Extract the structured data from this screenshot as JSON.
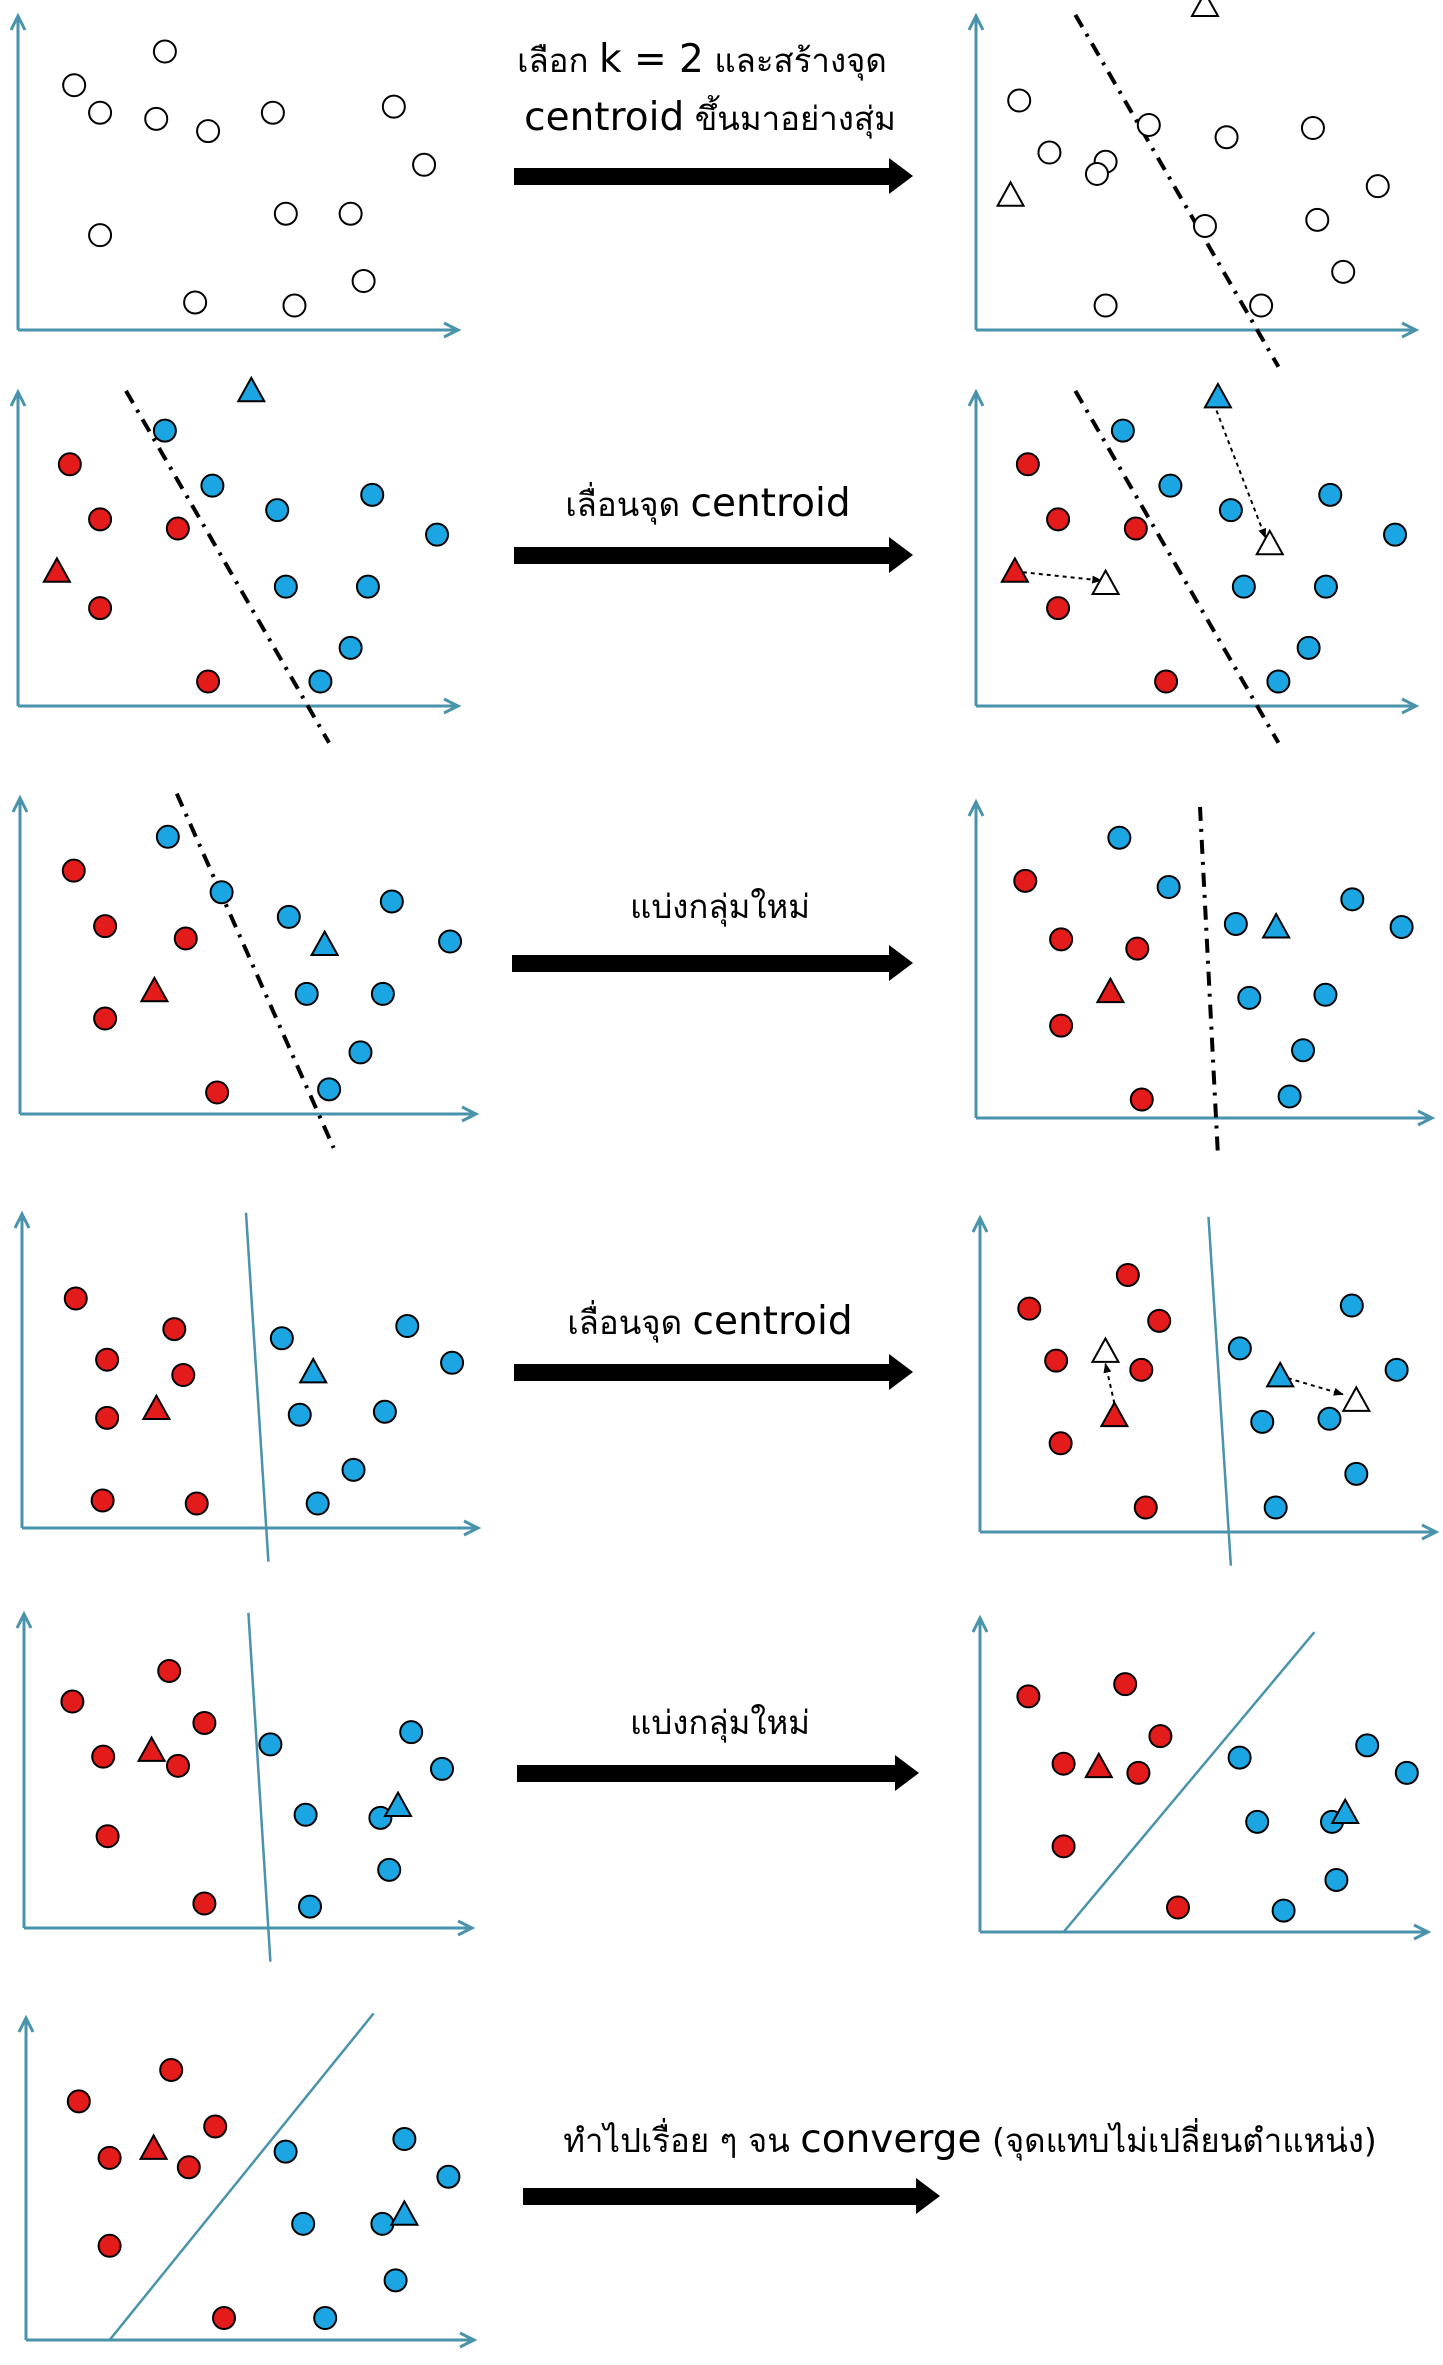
{
  "colors": {
    "axis": "#4a93ad",
    "red": "#e31b1b",
    "blue": "#1ba6e3",
    "stroke": "#000000",
    "arrow": "#000000"
  },
  "labels": {
    "step1_line1_a": "เลือก ",
    "step1_line1_b": "k = 2",
    "step1_line1_c": " และสร้างจุด",
    "step1_line2_a": "centroid",
    "step1_line2_b": " ขึ้นมาอย่างสุ่ม",
    "step2_a": "เลื่อนจุด ",
    "step2_b": "centroid",
    "step3": "แบ่งกลุ่มใหม่",
    "step4_a": "เลื่อนจุด ",
    "step4_b": "centroid",
    "step5": "แบ่งกลุ่มใหม่",
    "step6_a": "ทำไปเรื่อย ๆ จน ",
    "step6_b": "converge",
    "step6_c": " (จุดแทบไม่เปลี่ยนตำแหน่ง)"
  },
  "panels": [
    {
      "name": "panel-1-initial",
      "points": [
        [
          "w",
          0.13,
          0.8
        ],
        [
          "w",
          0.19,
          0.71
        ],
        [
          "w",
          0.34,
          0.91
        ],
        [
          "w",
          0.32,
          0.69
        ],
        [
          "w",
          0.44,
          0.65
        ],
        [
          "w",
          0.59,
          0.71
        ],
        [
          "w",
          0.87,
          0.73
        ],
        [
          "w",
          0.94,
          0.54
        ],
        [
          "w",
          0.19,
          0.31
        ],
        [
          "w",
          0.62,
          0.38
        ],
        [
          "w",
          0.77,
          0.38
        ],
        [
          "w",
          0.8,
          0.16
        ],
        [
          "w",
          0.41,
          0.09
        ],
        [
          "w",
          0.64,
          0.08
        ]
      ]
    },
    {
      "name": "panel-2-random-centroids",
      "points": [
        [
          "w",
          0.1,
          0.75
        ],
        [
          "w",
          0.17,
          0.58
        ],
        [
          "w",
          0.3,
          0.55
        ],
        [
          "w",
          0.4,
          0.67
        ],
        [
          "w",
          0.3,
          0.08
        ],
        [
          "w",
          0.28,
          0.51
        ],
        [
          "w",
          0.58,
          0.63
        ],
        [
          "w",
          0.53,
          0.34
        ],
        [
          "w",
          0.78,
          0.66
        ],
        [
          "w",
          0.93,
          0.47
        ],
        [
          "w",
          0.79,
          0.36
        ],
        [
          "w",
          0.85,
          0.19
        ],
        [
          "w",
          0.66,
          0.08
        ]
      ],
      "triangles": [
        [
          "w",
          0.08,
          0.44
        ],
        [
          "w",
          0.53,
          1.06
        ]
      ],
      "lines": [
        {
          "style": "dashdot",
          "from": [
            0.23,
            1.03
          ],
          "to": [
            0.7,
            -0.12
          ]
        }
      ]
    },
    {
      "name": "panel-3-assign",
      "points": [
        [
          "r",
          0.12,
          0.79
        ],
        [
          "r",
          0.19,
          0.61
        ],
        [
          "r",
          0.37,
          0.58
        ],
        [
          "r",
          0.19,
          0.32
        ],
        [
          "r",
          0.44,
          0.08
        ],
        [
          "b",
          0.34,
          0.9
        ],
        [
          "b",
          0.45,
          0.72
        ],
        [
          "b",
          0.6,
          0.64
        ],
        [
          "b",
          0.82,
          0.69
        ],
        [
          "b",
          0.97,
          0.56
        ],
        [
          "b",
          0.62,
          0.39
        ],
        [
          "b",
          0.81,
          0.39
        ],
        [
          "b",
          0.77,
          0.19
        ],
        [
          "b",
          0.7,
          0.08
        ]
      ],
      "triangles": [
        [
          "r",
          0.09,
          0.44
        ],
        [
          "b",
          0.54,
          1.03
        ]
      ],
      "lines": [
        {
          "style": "dashdot",
          "from": [
            0.25,
            1.03
          ],
          "to": [
            0.72,
            -0.12
          ]
        }
      ]
    },
    {
      "name": "panel-4-move-centroids",
      "points": [
        [
          "r",
          0.12,
          0.79
        ],
        [
          "r",
          0.19,
          0.61
        ],
        [
          "r",
          0.37,
          0.58
        ],
        [
          "r",
          0.19,
          0.32
        ],
        [
          "r",
          0.44,
          0.08
        ],
        [
          "b",
          0.34,
          0.9
        ],
        [
          "b",
          0.45,
          0.72
        ],
        [
          "b",
          0.59,
          0.64
        ],
        [
          "b",
          0.82,
          0.69
        ],
        [
          "b",
          0.97,
          0.56
        ],
        [
          "b",
          0.62,
          0.39
        ],
        [
          "b",
          0.81,
          0.39
        ],
        [
          "b",
          0.77,
          0.19
        ],
        [
          "b",
          0.7,
          0.08
        ]
      ],
      "triangles": [
        [
          "r",
          0.09,
          0.44
        ],
        [
          "b",
          0.56,
          1.01
        ],
        [
          "w",
          0.3,
          0.4
        ],
        [
          "w",
          0.68,
          0.53
        ]
      ],
      "arrows": [
        {
          "from": [
            0.09,
            0.44
          ],
          "to": [
            0.29,
            0.41
          ]
        },
        {
          "from": [
            0.55,
            0.99
          ],
          "to": [
            0.67,
            0.55
          ]
        }
      ],
      "lines": [
        {
          "style": "dashdot",
          "from": [
            0.23,
            1.03
          ],
          "to": [
            0.7,
            -0.12
          ]
        }
      ]
    },
    {
      "name": "panel-5-before-reassign",
      "points": [
        [
          "r",
          0.12,
          0.79
        ],
        [
          "r",
          0.19,
          0.61
        ],
        [
          "r",
          0.37,
          0.57
        ],
        [
          "r",
          0.19,
          0.31
        ],
        [
          "r",
          0.44,
          0.07
        ],
        [
          "b",
          0.33,
          0.9
        ],
        [
          "b",
          0.45,
          0.72
        ],
        [
          "b",
          0.6,
          0.64
        ],
        [
          "b",
          0.83,
          0.69
        ],
        [
          "b",
          0.96,
          0.56
        ],
        [
          "b",
          0.64,
          0.39
        ],
        [
          "b",
          0.81,
          0.39
        ],
        [
          "b",
          0.76,
          0.2
        ],
        [
          "b",
          0.69,
          0.08
        ]
      ],
      "triangles": [
        [
          "r",
          0.3,
          0.4
        ],
        [
          "b",
          0.68,
          0.55
        ]
      ],
      "lines": [
        {
          "style": "dashdot",
          "from": [
            0.35,
            1.04
          ],
          "to": [
            0.7,
            -0.11
          ]
        }
      ]
    },
    {
      "name": "panel-6-reassigned",
      "points": [
        [
          "r",
          0.11,
          0.77
        ],
        [
          "r",
          0.19,
          0.58
        ],
        [
          "r",
          0.36,
          0.55
        ],
        [
          "r",
          0.19,
          0.3
        ],
        [
          "r",
          0.37,
          0.06
        ],
        [
          "b",
          0.32,
          0.91
        ],
        [
          "b",
          0.43,
          0.75
        ],
        [
          "b",
          0.58,
          0.63
        ],
        [
          "b",
          0.84,
          0.71
        ],
        [
          "b",
          0.95,
          0.62
        ],
        [
          "b",
          0.61,
          0.39
        ],
        [
          "b",
          0.78,
          0.4
        ],
        [
          "b",
          0.73,
          0.22
        ],
        [
          "b",
          0.7,
          0.07
        ]
      ],
      "triangles": [
        [
          "r",
          0.3,
          0.41
        ],
        [
          "b",
          0.67,
          0.62
        ]
      ],
      "lines": [
        {
          "style": "dashdot",
          "from": [
            0.5,
            1.01
          ],
          "to": [
            0.54,
            -0.12
          ]
        }
      ]
    },
    {
      "name": "panel-7-after-reassign",
      "points": [
        [
          "r",
          0.12,
          0.75
        ],
        [
          "r",
          0.19,
          0.55
        ],
        [
          "r",
          0.34,
          0.65
        ],
        [
          "r",
          0.36,
          0.5
        ],
        [
          "r",
          0.19,
          0.36
        ],
        [
          "r",
          0.18,
          0.09
        ],
        [
          "r",
          0.39,
          0.08
        ],
        [
          "b",
          0.58,
          0.62
        ],
        [
          "b",
          0.86,
          0.66
        ],
        [
          "b",
          0.96,
          0.54
        ],
        [
          "b",
          0.62,
          0.37
        ],
        [
          "b",
          0.81,
          0.38
        ],
        [
          "b",
          0.74,
          0.19
        ],
        [
          "b",
          0.66,
          0.08
        ]
      ],
      "triangles": [
        [
          "r",
          0.3,
          0.39
        ],
        [
          "b",
          0.65,
          0.51
        ]
      ],
      "lines": [
        {
          "style": "solid",
          "from": [
            0.5,
            1.03
          ],
          "to": [
            0.55,
            -0.11
          ]
        }
      ]
    },
    {
      "name": "panel-8-move-centroids-2",
      "points": [
        [
          "r",
          0.11,
          0.73
        ],
        [
          "r",
          0.33,
          0.84
        ],
        [
          "r",
          0.4,
          0.69
        ],
        [
          "r",
          0.17,
          0.56
        ],
        [
          "r",
          0.36,
          0.53
        ],
        [
          "r",
          0.18,
          0.29
        ],
        [
          "r",
          0.37,
          0.08
        ],
        [
          "b",
          0.58,
          0.6
        ],
        [
          "b",
          0.83,
          0.74
        ],
        [
          "b",
          0.93,
          0.53
        ],
        [
          "b",
          0.63,
          0.36
        ],
        [
          "b",
          0.78,
          0.37
        ],
        [
          "b",
          0.84,
          0.19
        ],
        [
          "b",
          0.66,
          0.08
        ]
      ],
      "triangles": [
        [
          "w",
          0.28,
          0.59
        ],
        [
          "r",
          0.3,
          0.38
        ],
        [
          "b",
          0.67,
          0.51
        ],
        [
          "w",
          0.84,
          0.43
        ]
      ],
      "arrows": [
        {
          "from": [
            0.3,
            0.42
          ],
          "to": [
            0.28,
            0.55
          ]
        },
        {
          "from": [
            0.67,
            0.51
          ],
          "to": [
            0.81,
            0.45
          ]
        }
      ],
      "lines": [
        {
          "style": "solid",
          "from": [
            0.51,
            1.03
          ],
          "to": [
            0.56,
            -0.11
          ]
        }
      ]
    },
    {
      "name": "panel-9-before-reassign-2",
      "points": [
        [
          "r",
          0.11,
          0.74
        ],
        [
          "r",
          0.33,
          0.84
        ],
        [
          "r",
          0.41,
          0.67
        ],
        [
          "r",
          0.18,
          0.56
        ],
        [
          "r",
          0.35,
          0.53
        ],
        [
          "r",
          0.19,
          0.3
        ],
        [
          "r",
          0.41,
          0.08
        ],
        [
          "b",
          0.56,
          0.6
        ],
        [
          "b",
          0.88,
          0.64
        ],
        [
          "b",
          0.95,
          0.52
        ],
        [
          "b",
          0.64,
          0.37
        ],
        [
          "b",
          0.81,
          0.36
        ],
        [
          "b",
          0.83,
          0.19
        ],
        [
          "b",
          0.65,
          0.07
        ]
      ],
      "triangles": [
        [
          "r",
          0.29,
          0.58
        ],
        [
          "b",
          0.85,
          0.4
        ]
      ],
      "lines": [
        {
          "style": "solid",
          "from": [
            0.51,
            1.03
          ],
          "to": [
            0.56,
            -0.11
          ]
        }
      ]
    },
    {
      "name": "panel-10-reassigned-2",
      "points": [
        [
          "r",
          0.11,
          0.77
        ],
        [
          "r",
          0.33,
          0.81
        ],
        [
          "r",
          0.41,
          0.64
        ],
        [
          "r",
          0.19,
          0.55
        ],
        [
          "r",
          0.36,
          0.52
        ],
        [
          "r",
          0.19,
          0.28
        ],
        [
          "r",
          0.45,
          0.08
        ],
        [
          "b",
          0.59,
          0.57
        ],
        [
          "b",
          0.88,
          0.61
        ],
        [
          "b",
          0.97,
          0.52
        ],
        [
          "b",
          0.63,
          0.36
        ],
        [
          "b",
          0.8,
          0.36
        ],
        [
          "b",
          0.81,
          0.17
        ],
        [
          "b",
          0.69,
          0.07
        ]
      ],
      "triangles": [
        [
          "r",
          0.27,
          0.54
        ],
        [
          "b",
          0.83,
          0.39
        ]
      ],
      "lines": [
        {
          "style": "solid",
          "from": [
            0.19,
            0.0
          ],
          "to": [
            0.76,
            0.98
          ]
        }
      ]
    },
    {
      "name": "panel-11-converged",
      "points": [
        [
          "r",
          0.12,
          0.76
        ],
        [
          "r",
          0.33,
          0.86
        ],
        [
          "r",
          0.43,
          0.68
        ],
        [
          "r",
          0.19,
          0.58
        ],
        [
          "r",
          0.37,
          0.55
        ],
        [
          "r",
          0.19,
          0.3
        ],
        [
          "r",
          0.45,
          0.07
        ],
        [
          "b",
          0.59,
          0.6
        ],
        [
          "b",
          0.86,
          0.64
        ],
        [
          "b",
          0.96,
          0.52
        ],
        [
          "b",
          0.63,
          0.37
        ],
        [
          "b",
          0.81,
          0.37
        ],
        [
          "b",
          0.84,
          0.19
        ],
        [
          "b",
          0.68,
          0.07
        ]
      ],
      "triangles": [
        [
          "r",
          0.29,
          0.61
        ],
        [
          "b",
          0.86,
          0.4
        ]
      ],
      "lines": [
        {
          "style": "solid",
          "from": [
            0.19,
            0.0
          ],
          "to": [
            0.79,
            1.04
          ]
        }
      ]
    }
  ]
}
